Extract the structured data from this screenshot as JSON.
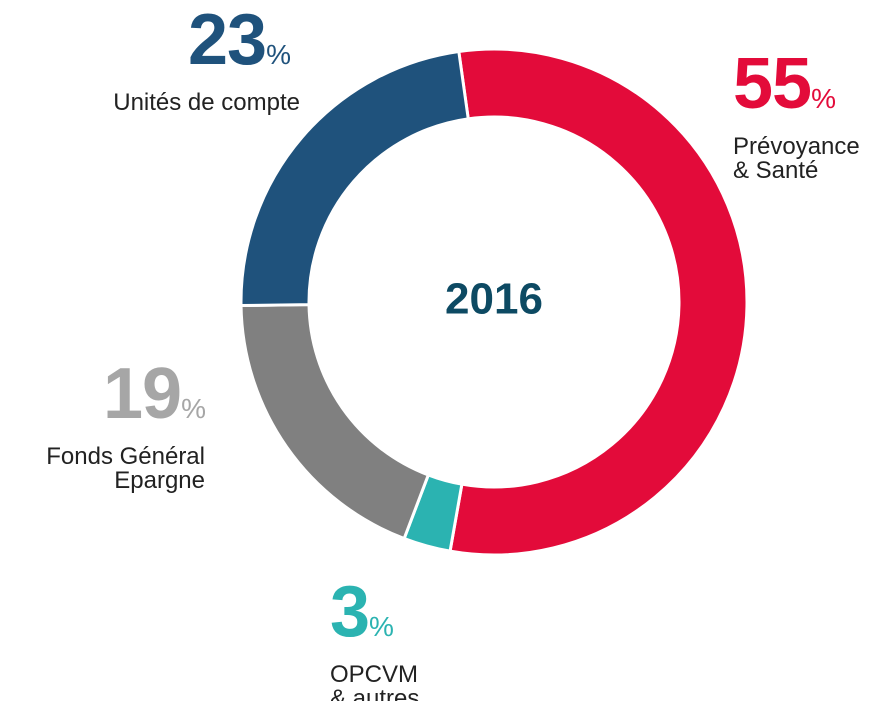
{
  "chart_data": {
    "type": "donut",
    "center_label": "2016",
    "categories": [
      "Prévoyance\n& Santé",
      "OPCVM\n& autres",
      "Fonds Général\nEpargne",
      "Unités de compte"
    ],
    "values": [
      55,
      3,
      19,
      23
    ],
    "unit": "%",
    "colors": [
      "#e30b3a",
      "#2bb3b1",
      "#808080",
      "#1f527c"
    ],
    "label_colors": [
      "#e30b3a",
      "#2bb3b1",
      "#a6a6a6",
      "#1f527c"
    ]
  }
}
